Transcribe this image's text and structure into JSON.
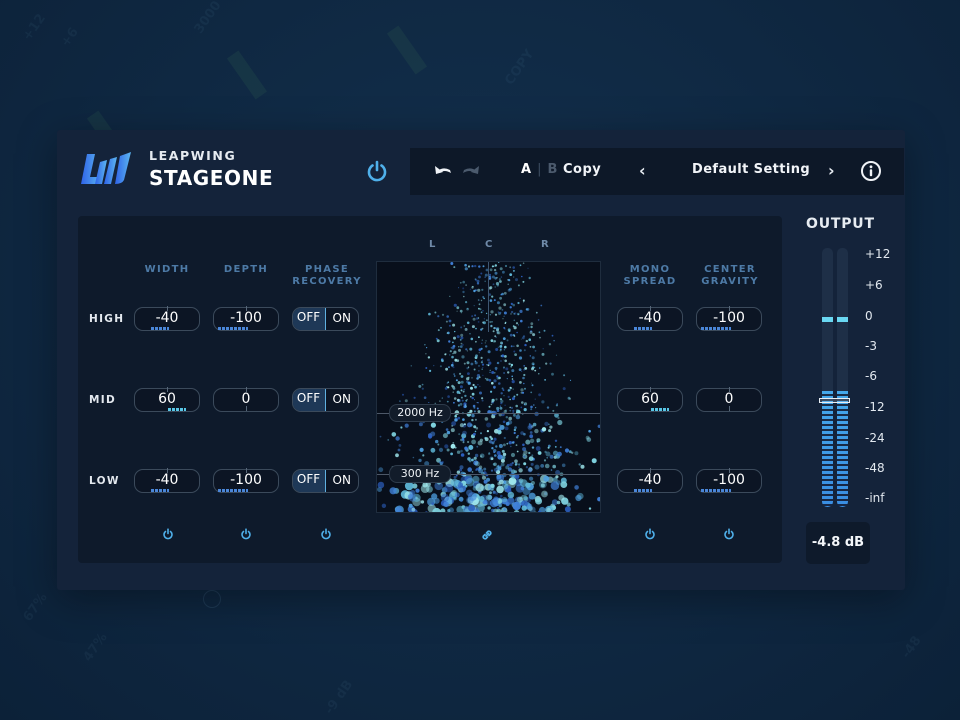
{
  "header": {
    "brand": "LEAPWING",
    "product": "STAGEONE",
    "power_icon": "power-icon"
  },
  "toolbar": {
    "undo_icon": "undo-icon",
    "redo_icon": "redo-icon",
    "a_label": "A",
    "separator": "|",
    "b_label": "B",
    "copy_label": "Copy",
    "prev_label": "‹",
    "preset_name": "Default Setting",
    "next_label": "›",
    "info_icon": "info-icon"
  },
  "columns": {
    "width": "WIDTH",
    "depth": "DEPTH",
    "phase_recovery_1": "PHASE",
    "phase_recovery_2": "RECOVERY",
    "mono_spread_1": "MONO",
    "mono_spread_2": "SPREAD",
    "center_gravity_1": "CENTER",
    "center_gravity_2": "GRAVITY"
  },
  "rows": [
    {
      "label": "HIGH",
      "width": "-40",
      "depth": "-100",
      "phase_off": "OFF",
      "phase_on": "ON",
      "mono_spread": "-40",
      "center_gravity": "-100"
    },
    {
      "label": "MID",
      "width": "60",
      "depth": "0",
      "phase_off": "OFF",
      "phase_on": "ON",
      "mono_spread": "60",
      "center_gravity": "0"
    },
    {
      "label": "LOW",
      "width": "-40",
      "depth": "-100",
      "phase_off": "OFF",
      "phase_on": "ON",
      "mono_spread": "-40",
      "center_gravity": "-100"
    }
  ],
  "visualizer": {
    "left_label": "L",
    "center_label": "C",
    "right_label": "R",
    "crossover_high": "2000 Hz",
    "crossover_low": "300 Hz",
    "link_icon": "link-icon"
  },
  "output": {
    "title": "OUTPUT",
    "scale": [
      "+12",
      "+6",
      "0",
      "-3",
      "-6",
      "-12",
      "-24",
      "-48",
      "-inf"
    ],
    "value": "-4.8 dB"
  },
  "colors": {
    "accent": "#4fb0ea",
    "label_blue": "#4d7aa6",
    "panel": "#0e1a2b",
    "window": "#14233a"
  }
}
